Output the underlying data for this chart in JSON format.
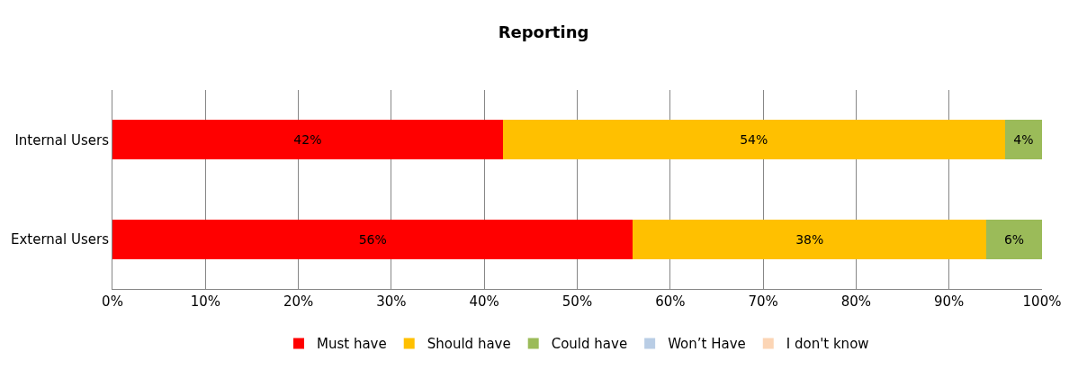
{
  "chart_data": {
    "type": "bar",
    "title": "Reporting",
    "orientation": "horizontal",
    "stacked": true,
    "categories": [
      "Internal Users",
      "External Users"
    ],
    "series": [
      {
        "name": "Must have",
        "color": "#ff0000",
        "values": [
          42,
          56
        ],
        "value_labels": [
          "42%",
          "56%"
        ]
      },
      {
        "name": "Should have",
        "color": "#ffc000",
        "values": [
          54,
          38
        ],
        "value_labels": [
          "54%",
          "38%"
        ]
      },
      {
        "name": "Could have",
        "color": "#9bbb59",
        "values": [
          4,
          6
        ],
        "value_labels": [
          "4%",
          "6%"
        ]
      },
      {
        "name": "Won’t Have",
        "color": "#b9cde5",
        "values": [
          0,
          0
        ],
        "value_labels": [
          null,
          null
        ]
      },
      {
        "name": "I don't know",
        "color": "#fcd5b5",
        "values": [
          0,
          0
        ],
        "value_labels": [
          null,
          null
        ]
      }
    ],
    "xlim": [
      0,
      100
    ],
    "xticks": [
      {
        "value": 0,
        "label": "0%"
      },
      {
        "value": 10,
        "label": "10%"
      },
      {
        "value": 20,
        "label": "20%"
      },
      {
        "value": 30,
        "label": "30%"
      },
      {
        "value": 40,
        "label": "40%"
      },
      {
        "value": 50,
        "label": "50%"
      },
      {
        "value": 60,
        "label": "60%"
      },
      {
        "value": 70,
        "label": "70%"
      },
      {
        "value": 80,
        "label": "80%"
      },
      {
        "value": 90,
        "label": "90%"
      },
      {
        "value": 100,
        "label": "100%"
      }
    ],
    "grid": "x",
    "legend": "bottom"
  }
}
